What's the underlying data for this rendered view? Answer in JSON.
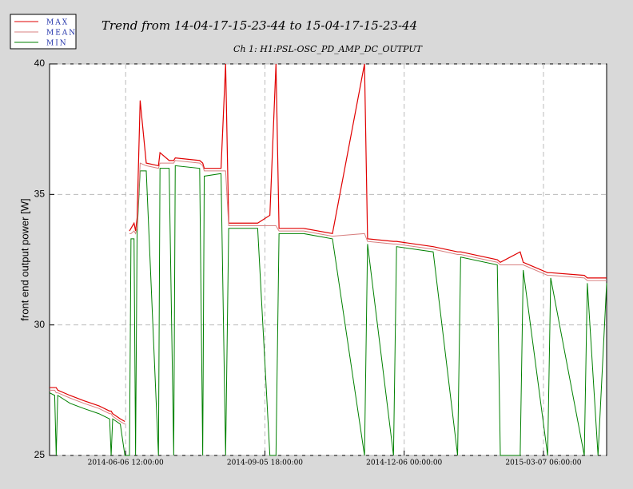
{
  "chart_data": {
    "type": "line",
    "title": "Trend from 14-04-17-15-23-44 to 15-04-17-15-23-44",
    "subtitle": "Ch 1: H1:PSL-OSC_PD_AMP_DC_OUTPUT",
    "y_label": "front end output power [W]",
    "x": [
      "2014-04-17 15:23:44",
      "2014-04-21 00:00:00",
      "2014-04-22 00:00:00",
      "2014-04-23 00:00:00",
      "2014-05-01 00:00:00",
      "2014-05-10 00:00:00",
      "2014-05-20 00:00:00",
      "2014-05-27 00:00:00",
      "2014-05-28 00:00:00",
      "2014-05-29 00:00:00",
      "2014-06-03 00:00:00",
      "2014-06-06 00:00:00",
      "2014-06-07 00:00:00",
      "2014-06-09 00:00:00",
      "2014-06-10 00:00:00",
      "2014-06-12 00:00:00",
      "2014-06-13 00:00:00",
      "2014-06-14 00:00:00",
      "2014-06-16 00:00:00",
      "2014-06-20 00:00:00",
      "2014-06-28 00:00:00",
      "2014-06-29 00:00:00",
      "2014-07-05 00:00:00",
      "2014-07-08 00:00:00",
      "2014-07-09 00:00:00",
      "2014-07-25 00:00:00",
      "2014-07-27 00:00:00",
      "2014-07-28 00:00:00",
      "2014-08-08 00:00:00",
      "2014-08-11 00:00:00",
      "2014-08-13 00:00:00",
      "2014-09-01 00:00:00",
      "2014-09-09 00:00:00",
      "2014-09-13 00:00:00",
      "2014-09-15 00:00:00",
      "2014-10-01 00:00:00",
      "2014-10-20 00:00:00",
      "2014-11-10 00:00:00",
      "2014-11-12 00:00:00",
      "2014-11-29 00:00:00",
      "2014-12-01 00:00:00",
      "2014-12-25 00:00:00",
      "2015-01-10 00:00:00",
      "2015-01-12 00:00:00",
      "2015-02-05 00:00:00",
      "2015-02-07 00:00:00",
      "2015-02-20 00:00:00",
      "2015-02-22 00:00:00",
      "2015-03-10 00:00:00",
      "2015-03-12 00:00:00",
      "2015-04-03 00:00:00",
      "2015-04-05 00:00:00",
      "2015-04-12 00:00:00",
      "2015-04-17 15:23:44"
    ],
    "series": [
      {
        "name": "MAX",
        "color": "#e00000",
        "values": [
          27.6,
          27.6,
          27.6,
          27.5,
          27.3,
          27.1,
          26.9,
          26.7,
          26.7,
          26.6,
          26.4,
          26.3,
          null,
          33.6,
          33.7,
          33.9,
          33.6,
          34.1,
          38.6,
          36.2,
          36.1,
          36.6,
          36.3,
          36.3,
          36.4,
          36.3,
          36.2,
          36.0,
          36.0,
          40,
          33.9,
          33.9,
          34.2,
          40,
          33.7,
          33.7,
          33.5,
          40,
          33.3,
          33.2,
          33.2,
          33.0,
          32.8,
          32.8,
          32.5,
          32.4,
          32.8,
          32.4,
          32.0,
          32.0,
          31.9,
          31.8,
          31.8,
          31.8
        ]
      },
      {
        "name": "MEAN",
        "color": "#d88080",
        "values": [
          27.5,
          27.5,
          27.4,
          27.4,
          27.2,
          27.0,
          26.8,
          26.6,
          26.6,
          26.5,
          26.3,
          26.2,
          null,
          33.5,
          33.5,
          33.6,
          33.5,
          33.7,
          36.2,
          36.1,
          36.0,
          36.2,
          36.2,
          36.2,
          36.3,
          36.2,
          36.1,
          35.9,
          35.9,
          35.9,
          33.8,
          33.8,
          33.8,
          33.8,
          33.6,
          33.6,
          33.4,
          33.5,
          33.2,
          33.1,
          33.1,
          32.9,
          32.7,
          32.7,
          32.4,
          32.3,
          32.3,
          32.3,
          31.9,
          31.9,
          31.8,
          31.7,
          31.7,
          31.7
        ]
      },
      {
        "name": "MIN",
        "color": "#008000",
        "values": [
          27.4,
          27.3,
          25,
          27.3,
          27.0,
          26.8,
          26.6,
          26.4,
          25,
          26.4,
          26.2,
          25,
          25,
          25,
          33.3,
          33.3,
          25,
          33.5,
          35.9,
          35.9,
          25,
          36.0,
          36.0,
          25,
          36.1,
          36.0,
          25,
          35.7,
          35.8,
          25,
          33.7,
          33.7,
          25,
          25,
          33.5,
          33.5,
          33.3,
          25,
          33.1,
          25,
          33.0,
          32.8,
          25,
          32.6,
          32.3,
          25,
          25,
          32.1,
          25,
          31.8,
          25,
          31.6,
          25,
          31.6
        ]
      }
    ],
    "xlim": [
      "2014-04-17 15:23:44",
      "2015-04-17 15:23:44"
    ],
    "xticks": [
      "2014-06-06 12:00:00",
      "2014-09-05 18:00:00",
      "2014-12-06 00:00:00",
      "2015-03-07 06:00:00"
    ],
    "ylim": [
      25,
      40
    ],
    "yticks": [
      25,
      30,
      35,
      40
    ],
    "grid": true,
    "legend_position": "top-left"
  }
}
